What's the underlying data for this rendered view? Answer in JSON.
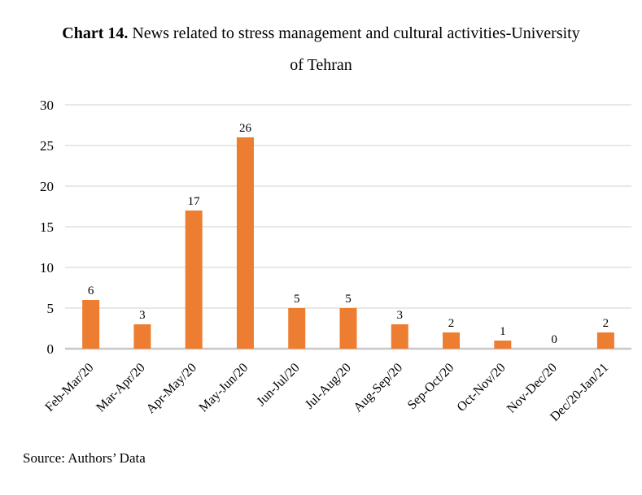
{
  "title": {
    "bold": "Chart 14.",
    "line1_rest": " News related to stress management and cultural activities-University",
    "line2": "of Tehran"
  },
  "source": "Source: Authors’ Data",
  "chart_data": {
    "type": "bar",
    "title": "Chart 14. News related to stress management and cultural activities-University of Tehran",
    "categories": [
      "Feb-Mar/20",
      "Mar-Apr/20",
      "Apr-May/20",
      "May-Jun/20",
      "Jun-Jul/20",
      "Jul-Aug/20",
      "Aug-Sep/20",
      "Sep-Oct/20",
      "Oct-Nov/20",
      "Nov-Dec/20",
      "Dec/20-Jan/21"
    ],
    "values": [
      6,
      3,
      17,
      26,
      5,
      5,
      3,
      2,
      1,
      0,
      2
    ],
    "xlabel": "",
    "ylabel": "",
    "ylim": [
      0,
      30
    ],
    "ytick_step": 5,
    "yticks": [
      0,
      5,
      10,
      15,
      20,
      25,
      30
    ],
    "grid": true,
    "legend": "none",
    "data_labels": true,
    "bar_color": "#ED7D31",
    "gridline_color": "#D9D9D9",
    "axisline_color": "#C8C8C8",
    "text_color": "#000000",
    "source_note": "Source: Authors’ Data"
  }
}
